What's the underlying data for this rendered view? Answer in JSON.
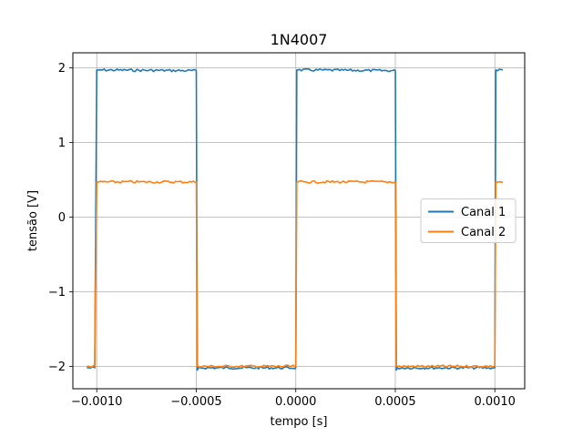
{
  "chart_data": {
    "type": "line",
    "title": "1N4007",
    "xlabel": "tempo [s]",
    "ylabel": "tensão [V]",
    "xlim": [
      -0.00112,
      0.00115
    ],
    "ylim": [
      -2.3,
      2.2
    ],
    "grid": true,
    "legend_position": "right",
    "x_ticks": [
      -0.001,
      -0.0005,
      0.0,
      0.0005,
      0.001
    ],
    "x_tick_labels": [
      "−0.0010",
      "−0.0005",
      "0.0000",
      "0.0005",
      "0.0010"
    ],
    "y_ticks": [
      -2,
      -1,
      0,
      1,
      2
    ],
    "y_tick_labels": [
      "−2",
      "−1",
      "0",
      "1",
      "2"
    ],
    "series": [
      {
        "name": "Canal 1",
        "color": "#1f77b4",
        "x": [
          -0.00105,
          -0.00101,
          -0.001,
          -0.00099,
          -0.0005,
          -0.000495,
          -0.00049,
          0.0,
          5e-06,
          1e-05,
          0.0005,
          0.000505,
          0.00051,
          0.001,
          0.001005,
          0.00104
        ],
        "y": [
          -2.02,
          -2.02,
          1.97,
          1.97,
          1.96,
          -2.05,
          -2.02,
          -2.02,
          1.97,
          1.97,
          1.96,
          -2.05,
          -2.02,
          -2.02,
          1.97,
          1.97
        ]
      },
      {
        "name": "Canal 2",
        "color": "#ff7f0e",
        "x": [
          -0.00105,
          -0.00101,
          -0.001,
          -0.00099,
          -0.0005,
          -0.000495,
          -0.00049,
          0.0,
          5e-06,
          1e-05,
          0.0005,
          0.000505,
          0.00051,
          0.001,
          0.001005,
          0.00104
        ],
        "y": [
          -2.0,
          -2.0,
          0.47,
          0.47,
          0.47,
          -2.0,
          -2.0,
          -2.0,
          0.47,
          0.47,
          0.47,
          -2.0,
          -2.0,
          -2.0,
          0.47,
          0.47
        ]
      }
    ]
  }
}
